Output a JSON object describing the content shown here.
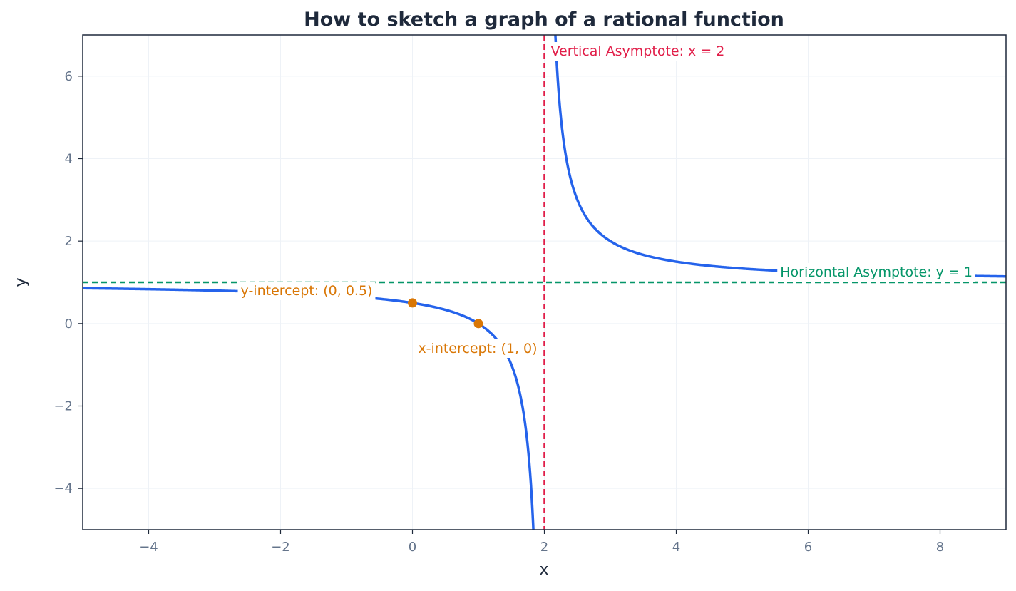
{
  "chart_data": {
    "type": "line",
    "title": "How to sketch a graph of a rational function",
    "xlabel": "x",
    "ylabel": "y",
    "xlim": [
      -5,
      9
    ],
    "ylim": [
      -5,
      7
    ],
    "xticks": [
      -4,
      -2,
      0,
      2,
      4,
      6,
      8
    ],
    "yticks": [
      -4,
      -2,
      0,
      2,
      4,
      6
    ],
    "grid": true,
    "function": {
      "numerator_root": 1,
      "pole": 2,
      "horizontal_asymptote": 1
    },
    "series": [
      {
        "color": "#2563eb",
        "points": [
          [
            -5,
            0.857
          ],
          [
            -4,
            0.833
          ],
          [
            -3,
            0.8
          ],
          [
            -2,
            0.75
          ],
          [
            -1,
            0.667
          ],
          [
            0,
            0.5
          ],
          [
            0.5,
            0.333
          ],
          [
            1,
            0
          ],
          [
            1.25,
            -0.333
          ],
          [
            1.5,
            -1
          ],
          [
            1.75,
            -3
          ],
          [
            1.8,
            -4
          ],
          [
            1.833,
            -5
          ],
          [
            2.2,
            6
          ],
          [
            2.25,
            5
          ],
          [
            2.5,
            3
          ],
          [
            3,
            2
          ],
          [
            3.5,
            1.667
          ],
          [
            4,
            1.5
          ],
          [
            5,
            1.333
          ],
          [
            6,
            1.25
          ],
          [
            7,
            1.2
          ],
          [
            8,
            1.167
          ],
          [
            9,
            1.143
          ]
        ]
      }
    ],
    "asymptotes": {
      "vertical": {
        "x": 2,
        "color": "#e11d48",
        "label": "Vertical Asymptote: x = 2"
      },
      "horizontal": {
        "y": 1,
        "color": "#059669",
        "label": "Horizontal Asymptote: y = 1"
      }
    },
    "points": [
      {
        "x": 0,
        "y": 0.5,
        "label": "y-intercept: (0, 0.5)",
        "color": "#d97706"
      },
      {
        "x": 1,
        "y": 0,
        "label": "x-intercept: (1, 0)",
        "color": "#d97706"
      }
    ],
    "colors": {
      "curve": "#2563eb",
      "vertical_asymptote": "#e11d48",
      "horizontal_asymptote": "#059669",
      "intercepts": "#d97706",
      "grid": "#eef2f7",
      "tick_text": "#64748b",
      "axis_text": "#1e293b"
    }
  }
}
